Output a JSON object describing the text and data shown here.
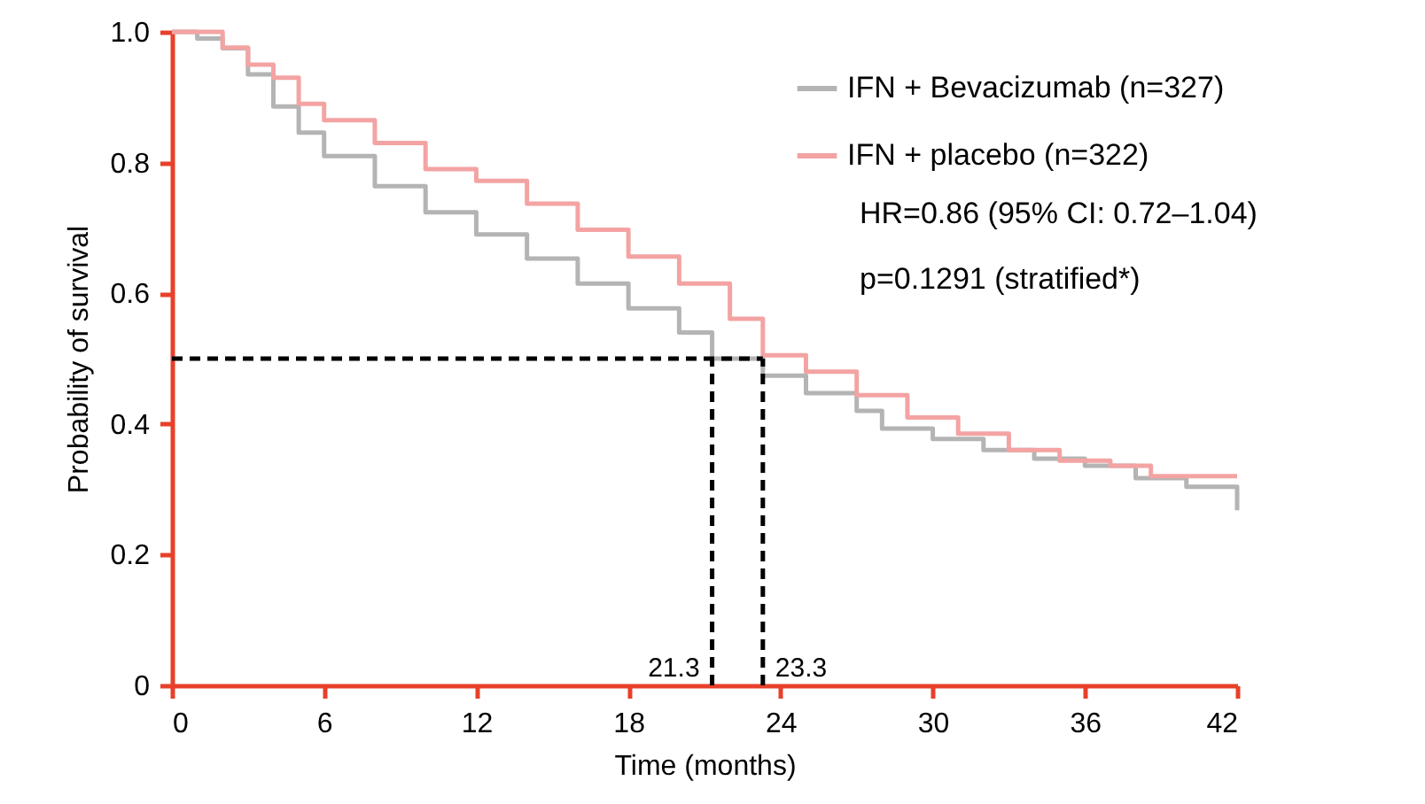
{
  "chart_data": {
    "type": "step",
    "xlabel": "Time (months)",
    "ylabel": "Probability of survival",
    "xlim": [
      0,
      42
    ],
    "xticks": [
      0,
      6,
      12,
      18,
      24,
      30,
      36,
      42
    ],
    "ylim": [
      0,
      1
    ],
    "yticks": [
      {
        "value": 0,
        "label": "0"
      },
      {
        "value": 0.2,
        "label": "0.2"
      },
      {
        "value": 0.4,
        "label": "0.4"
      },
      {
        "value": 0.6,
        "label": "0.6"
      },
      {
        "value": 0.8,
        "label": "0.8"
      },
      {
        "value": 1,
        "label": "1.0"
      }
    ],
    "series": [
      {
        "name": "IFN + Bevacizumab (n=327)",
        "color": "#b4b4b4",
        "x": [
          0,
          1,
          2,
          3,
          4,
          5,
          6,
          8,
          10,
          12,
          14,
          16,
          18,
          20,
          21.3,
          23.3,
          25,
          27,
          28,
          30,
          32,
          34,
          36,
          38,
          40,
          42
        ],
        "values": [
          1,
          0.99,
          0.975,
          0.935,
          0.886,
          0.846,
          0.81,
          0.764,
          0.724,
          0.69,
          0.653,
          0.615,
          0.577,
          0.54,
          0.5,
          0.474,
          0.447,
          0.42,
          0.393,
          0.377,
          0.36,
          0.347,
          0.336,
          0.317,
          0.304,
          0.268
        ]
      },
      {
        "name": "IFN + placebo (n=322)",
        "color": "#f4a3a3",
        "x": [
          0,
          2,
          3,
          4,
          5,
          6,
          8,
          10,
          12,
          14,
          16,
          18,
          20,
          22,
          23.3,
          25,
          27,
          29,
          31,
          33,
          35,
          37,
          38.6,
          42
        ],
        "values": [
          1,
          0.976,
          0.95,
          0.93,
          0.89,
          0.865,
          0.83,
          0.79,
          0.772,
          0.737,
          0.697,
          0.656,
          0.615,
          0.561,
          0.505,
          0.48,
          0.444,
          0.41,
          0.385,
          0.36,
          0.344,
          0.336,
          0.32,
          0.32
        ]
      }
    ],
    "ref_lines": [
      {
        "axis": "y",
        "value": 0.5,
        "color": "#000000",
        "line_style": "dashed"
      },
      {
        "axis": "x",
        "value": 21.3,
        "label": "21.3",
        "color": "#000000",
        "line_style": "dashed"
      },
      {
        "axis": "x",
        "value": 23.3,
        "label": "23.3",
        "color": "#000000",
        "line_style": "dashed"
      }
    ],
    "annotations": [
      "HR=0.86 (95% CI: 0.72–1.04)",
      "p=0.1291 (stratified*)"
    ],
    "legend": "top right",
    "grid": false,
    "marker": "none",
    "line_style": "solid"
  }
}
